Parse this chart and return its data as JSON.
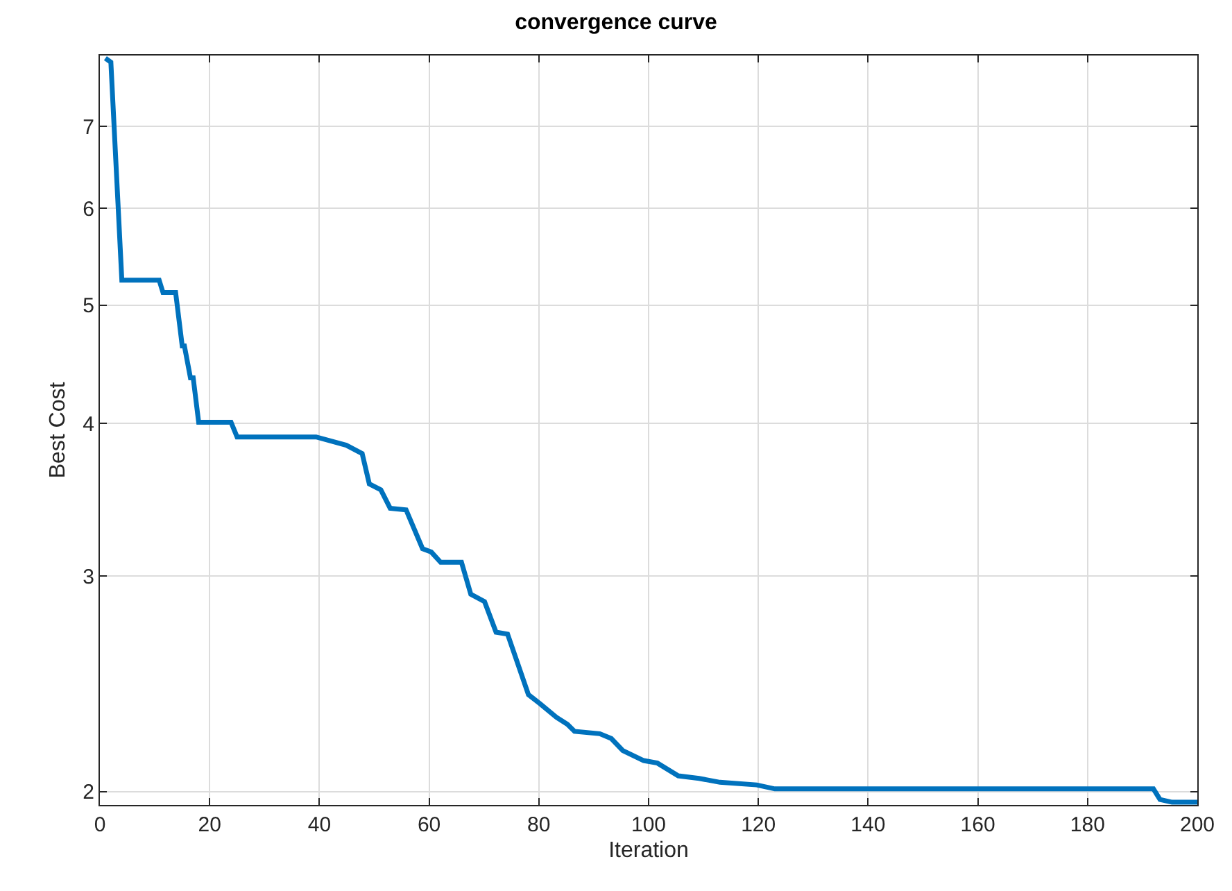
{
  "chart_data": {
    "type": "line",
    "title": "convergence curve",
    "xlabel": "Iteration",
    "ylabel": "Best Cost",
    "log": "y",
    "grid": true,
    "marker": "none",
    "line_style": "solid",
    "xlim": [
      0,
      200
    ],
    "xticks": [
      0,
      20,
      40,
      60,
      80,
      100,
      120,
      140,
      160,
      180,
      200
    ],
    "ylim": [
      1.95,
      8
    ],
    "yticks": [
      2,
      3,
      4,
      5,
      6,
      7
    ],
    "series": [
      {
        "color": "#0072bd",
        "x": [
          1,
          2,
          4,
          10.8,
          11.5,
          13.8,
          15,
          15.4,
          16.5,
          17,
          18,
          18.8,
          23.9,
          25,
          39.4,
          44.9,
          47.8,
          49.1,
          51.2,
          52.9,
          55.8,
          58.8,
          60.4,
          62.1,
          65.9,
          67.6,
          70.1,
          72.2,
          74.3,
          78.1,
          80.2,
          83.2,
          85.2,
          86.5,
          91.1,
          93.2,
          95.3,
          99.1,
          101.6,
          105.4,
          109.2,
          113,
          119.7,
          123,
          128.9,
          192,
          193.2,
          195.4,
          200
        ],
        "values": [
          7.96,
          7.9,
          5.24,
          5.24,
          5.12,
          5.12,
          4.63,
          4.63,
          4.36,
          4.36,
          4.01,
          4.01,
          4.01,
          3.9,
          3.9,
          3.84,
          3.78,
          3.57,
          3.53,
          3.41,
          3.4,
          3.16,
          3.14,
          3.08,
          3.08,
          2.9,
          2.86,
          2.7,
          2.69,
          2.4,
          2.36,
          2.3,
          2.27,
          2.24,
          2.23,
          2.21,
          2.16,
          2.12,
          2.11,
          2.06,
          2.05,
          2.035,
          2.025,
          2.01,
          2.01,
          2.01,
          1.97,
          1.96,
          1.96
        ]
      }
    ]
  }
}
